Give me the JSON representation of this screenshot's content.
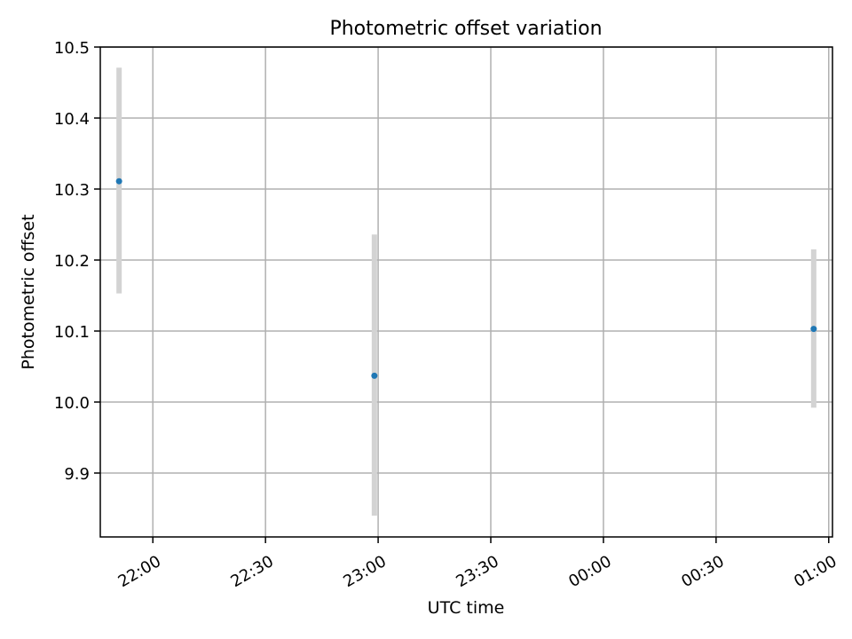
{
  "chart_data": {
    "type": "scatter",
    "title": "Photometric offset variation",
    "xlabel": "UTC time",
    "ylabel": "Photometric offset",
    "x_ticks": [
      "22:00",
      "22:30",
      "23:00",
      "23:30",
      "00:00",
      "00:30",
      "01:00"
    ],
    "y_ticks": [
      "9.9",
      "10.0",
      "10.1",
      "10.2",
      "10.3",
      "10.4",
      "10.5"
    ],
    "ylim": [
      9.81,
      10.5
    ],
    "xlim": [
      "21:46",
      "01:01"
    ],
    "grid": true,
    "series": [
      {
        "points": [
          {
            "x": "21:51",
            "y": 10.311,
            "err_low": 10.153,
            "err_high": 10.471
          },
          {
            "x": "22:59",
            "y": 10.037,
            "err_low": 9.84,
            "err_high": 10.236
          },
          {
            "x": "00:56",
            "y": 10.103,
            "err_low": 9.992,
            "err_high": 10.215
          }
        ]
      }
    ],
    "colors": {
      "point": "#1f77b4",
      "errorbar": "#d3d3d3",
      "grid": "#b0b0b0",
      "axis": "#000000"
    }
  }
}
